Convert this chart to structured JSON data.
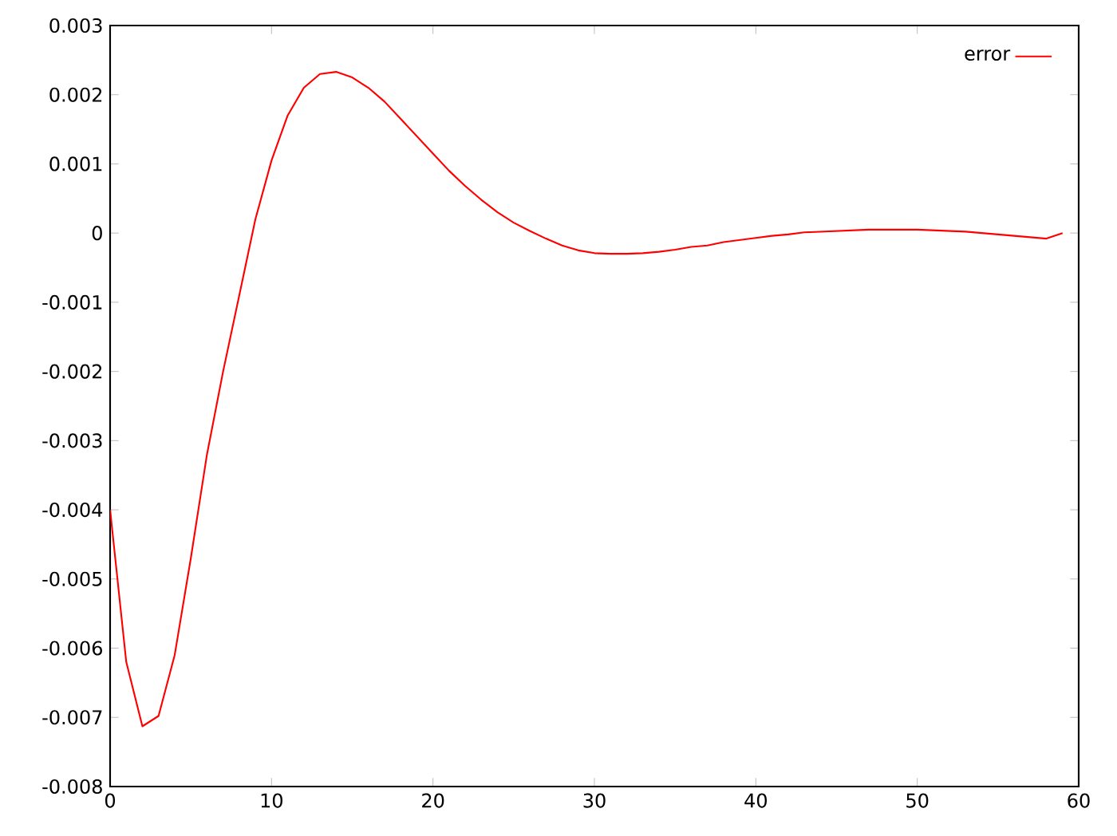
{
  "chart_data": {
    "type": "line",
    "x": [
      0,
      1,
      2,
      3,
      4,
      5,
      6,
      7,
      8,
      9,
      10,
      11,
      12,
      13,
      14,
      15,
      16,
      17,
      18,
      19,
      20,
      21,
      22,
      23,
      24,
      25,
      26,
      27,
      28,
      29,
      30,
      31,
      32,
      33,
      34,
      35,
      36,
      37,
      38,
      39,
      40,
      41,
      42,
      43,
      44,
      45,
      46,
      47,
      48,
      49,
      50,
      51,
      52,
      53,
      54,
      55,
      56,
      57,
      58,
      59
    ],
    "series": [
      {
        "name": "error",
        "color": "#ff0000",
        "values": [
          -0.004,
          -0.0062,
          -0.00713,
          -0.00698,
          -0.0061,
          -0.0047,
          -0.0032,
          -0.002,
          -0.0009,
          0.0002,
          0.00105,
          0.0017,
          0.0021,
          0.0023,
          0.00233,
          0.00225,
          0.0021,
          0.0019,
          0.00165,
          0.0014,
          0.00115,
          0.0009,
          0.00068,
          0.00048,
          0.0003,
          0.00015,
          3e-05,
          -8e-05,
          -0.00018,
          -0.00025,
          -0.00029,
          -0.0003,
          -0.0003,
          -0.00029,
          -0.00027,
          -0.00024,
          -0.0002,
          -0.00018,
          -0.00013,
          -0.0001,
          -7e-05,
          -4e-05,
          -2e-05,
          1e-05,
          2e-05,
          3e-05,
          4e-05,
          5e-05,
          5e-05,
          5e-05,
          5e-05,
          4e-05,
          3e-05,
          2e-05,
          0.0,
          -2e-05,
          -4e-05,
          -6e-05,
          -8e-05,
          0.0
        ]
      }
    ],
    "xlim": [
      0,
      60
    ],
    "xticks": [
      0,
      10,
      20,
      30,
      40,
      50,
      60
    ],
    "ylim": [
      -0.008,
      0.003
    ],
    "yticks": [
      -0.008,
      -0.007,
      -0.006,
      -0.005,
      -0.004,
      -0.003,
      -0.002,
      -0.001,
      0,
      0.001,
      0.002,
      0.003
    ],
    "legend": "top right",
    "grid": false,
    "marker": "none",
    "line_style": "solid"
  }
}
